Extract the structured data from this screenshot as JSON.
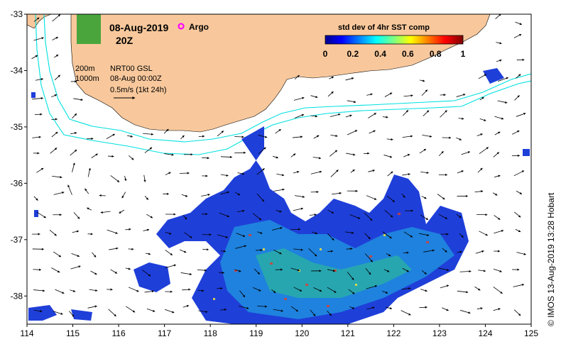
{
  "title": {
    "date": "08-Aug-2019",
    "time": "20Z",
    "argo_label": "Argo"
  },
  "legend_block": {
    "depth_200": "200m",
    "depth_1000": "1000m",
    "product": "NRT00 GSL",
    "product_time": "08-Aug 00:00Z",
    "vector_scale": "0.5m/s (1kt 24h)"
  },
  "colorbar": {
    "title": "std dev of 4hr SST comp",
    "ticks": [
      "0",
      "0.2",
      "0.4",
      "0.6",
      "0.8",
      "1"
    ]
  },
  "credit": "© IMOS 13-Aug-2019 13:28 Hobart",
  "axes": {
    "x_ticks": [
      "114",
      "115",
      "116",
      "117",
      "118",
      "119",
      "120",
      "121",
      "122",
      "123",
      "124",
      "125"
    ],
    "y_ticks": [
      "-33",
      "-34",
      "-35",
      "-36",
      "-37",
      "-38"
    ],
    "x_range": [
      114,
      125
    ],
    "y_range": [
      -38.5,
      -33
    ]
  },
  "colors": {
    "land": "#f8c89c",
    "contour": "#00e0e0",
    "argo": "#ff00ff"
  }
}
